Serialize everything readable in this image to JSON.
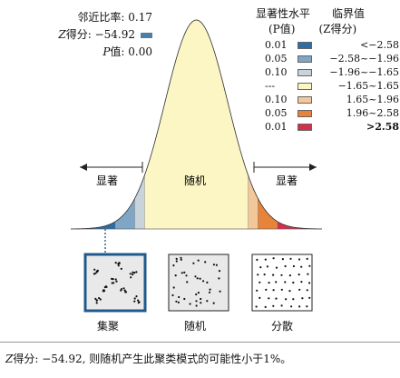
{
  "stats": {
    "nearest_neighbor_label": "邻近比率: 0.17",
    "z_prefix": "Z",
    "z_label": "得分: −54.92",
    "p_prefix": "P",
    "p_label": "值: 0.00"
  },
  "legend": {
    "header_sig": "显著性水平",
    "header_sig_sub": "(P值)",
    "header_crit": "临界值",
    "header_crit_sub": "(Z得分)",
    "rows": [
      {
        "sig": "0.01",
        "range": "<−2.58",
        "color": "#2e6da4",
        "bold": false
      },
      {
        "sig": "0.05",
        "range": "−2.58~−1.96",
        "color": "#7fa6c6",
        "bold": false
      },
      {
        "sig": "0.10",
        "range": "−1.96~−1.65",
        "color": "#c9d3dc",
        "bold": false
      },
      {
        "sig": "---",
        "range": "−1.65~1.65",
        "color": "#fbf6c4",
        "bold": false
      },
      {
        "sig": "0.10",
        "range": "1.65~1.96",
        "color": "#f4c79a",
        "bold": false
      },
      {
        "sig": "0.05",
        "range": "1.96~2.58",
        "color": "#e8833a",
        "bold": false
      },
      {
        "sig": "0.01",
        "range": ">2.58",
        "color": "#d42e4c",
        "bold": true
      }
    ]
  },
  "chart_data": {
    "type": "area",
    "curve": "standard normal distribution",
    "x_range": [
      -4,
      4
    ],
    "regions": [
      {
        "from": -4,
        "to": -2.58,
        "color": "#2e6da4"
      },
      {
        "from": -2.58,
        "to": -1.96,
        "color": "#7fa6c6"
      },
      {
        "from": -1.96,
        "to": -1.65,
        "color": "#c9d3dc"
      },
      {
        "from": -1.65,
        "to": 1.65,
        "color": "#fbf6c4"
      },
      {
        "from": 1.65,
        "to": 1.96,
        "color": "#f4c79a"
      },
      {
        "from": 1.96,
        "to": 2.58,
        "color": "#e8833a"
      },
      {
        "from": 2.58,
        "to": 4,
        "color": "#d42e4c"
      }
    ],
    "region_labels": {
      "left": "显著",
      "center": "随机",
      "right": "显著"
    },
    "patterns": [
      {
        "label": "集聚",
        "selected": true
      },
      {
        "label": "随机",
        "selected": false
      },
      {
        "label": "分散",
        "selected": false
      }
    ]
  },
  "caption": {
    "z_prefix": "Z",
    "text": "得分: −54.92, 则随机产生此聚类模式的可能性小于1%。"
  }
}
